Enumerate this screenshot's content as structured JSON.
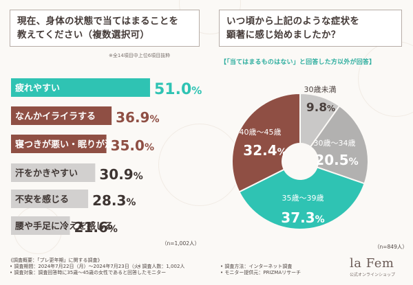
{
  "left_question": {
    "line1": "現在、身体の状態で当てはまることを",
    "line2": "教えてください（複数選択可）"
  },
  "left_note": "※全14項目中上位6項目抜粋",
  "right_question": {
    "line1": "いつ頃から上記のような症状を",
    "line2": "顕著に感じ始めましたか？"
  },
  "right_note": "【「当てはまるものはない」と回答した方以外が回答】",
  "chart_data": [
    {
      "type": "bar",
      "orientation": "horizontal",
      "categories": [
        "疲れやすい",
        "なんかイライラする",
        "寝つきが悪い・眠りが浅い",
        "汗をかきやすい",
        "不安を感じる",
        "腰や手足に冷えを感じる"
      ],
      "values": [
        51.0,
        36.9,
        35.0,
        30.9,
        28.3,
        21.6
      ],
      "value_labels": [
        [
          "51.",
          "0",
          "%"
        ],
        [
          "36.",
          "9",
          "%"
        ],
        [
          "35.",
          "0",
          "%"
        ],
        [
          "30.",
          "9",
          "%"
        ],
        [
          "28.",
          "3",
          "%"
        ],
        [
          "21.",
          "6",
          "%"
        ]
      ],
      "colors": [
        "#2fc3b3",
        "#8f4f44",
        "#8f4f44",
        "#d2d0cf",
        "#d2d0cf",
        "#d2d0cf"
      ],
      "label_colors": [
        "#ffffff",
        "#ffffff",
        "#ffffff",
        "#3e3532",
        "#3e3532",
        "#3e3532"
      ],
      "value_colors": [
        "#2fc3b3",
        "#8f4f44",
        "#8f4f44",
        "#3e3532",
        "#3e3532",
        "#3e3532"
      ],
      "n_label": "（n=1,002人）"
    },
    {
      "type": "pie",
      "donut": true,
      "categories": [
        "30歳未満",
        "30歳〜34歳",
        "35歳〜39歳",
        "40歳〜45歳"
      ],
      "values": [
        9.8,
        20.5,
        37.3,
        32.4
      ],
      "value_labels": [
        [
          "9.",
          "8",
          "%"
        ],
        [
          "20.",
          "5",
          "%"
        ],
        [
          "37.",
          "3",
          "%"
        ],
        [
          "32.",
          "4",
          "%"
        ]
      ],
      "colors": [
        "#c9c8c7",
        "#b2b1b0",
        "#2fc3b3",
        "#8f4f44"
      ],
      "label_colors": [
        "#4a403d",
        "#ffffff",
        "#ffffff",
        "#ffffff"
      ],
      "n_label": "（n=849人）"
    }
  ],
  "footer": {
    "title": "《調査概要：「プレ更年期」に関する調査》",
    "period": "• 調査期間：2024年7月22日（月）〜2024年7月23日（火）",
    "count": "• 調査人数：1,002人",
    "target": "• 調査対象：調査回答時に35歳〜45歳の女性であると回答したモニター",
    "method": "• 調査方法：インターネット調査",
    "provider": "• モニター提供元：PRIZMAリサーチ"
  },
  "brand": {
    "name": "la Fem",
    "sub": "公式オンラインショップ"
  }
}
